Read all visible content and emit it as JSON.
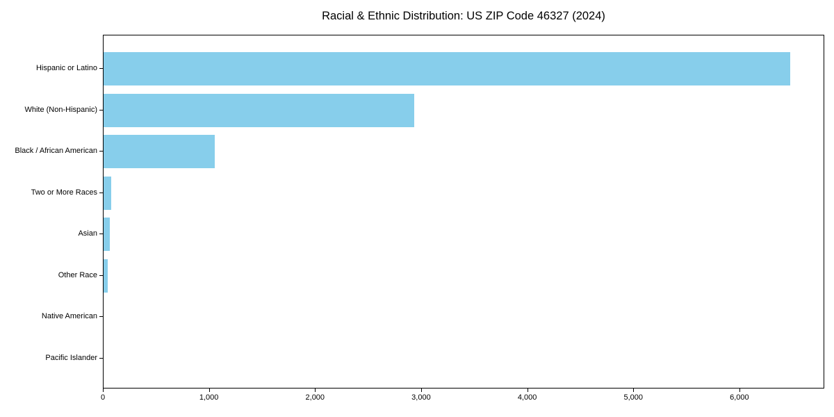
{
  "chart_data": {
    "type": "bar",
    "orientation": "horizontal",
    "title": "Racial & Ethnic Distribution: US ZIP Code 46327 (2024)",
    "categories": [
      "Hispanic or Latino",
      "White (Non-Hispanic)",
      "Black / African American",
      "Two or More Races",
      "Asian",
      "Other Race",
      "Native American",
      "Pacific Islander"
    ],
    "values": [
      6470,
      2930,
      1045,
      75,
      58,
      38,
      0,
      0
    ],
    "bar_color": "#87CEEB",
    "xlabel": "",
    "ylabel": "",
    "xlim": [
      0,
      6800
    ],
    "xticks": [
      0,
      1000,
      2000,
      3000,
      4000,
      5000,
      6000
    ],
    "xtick_labels": [
      "0",
      "1,000",
      "2,000",
      "3,000",
      "4,000",
      "5,000",
      "6,000"
    ],
    "grid": false,
    "legend": null,
    "background_color": "#ffffff",
    "spine_color": "#000000"
  }
}
